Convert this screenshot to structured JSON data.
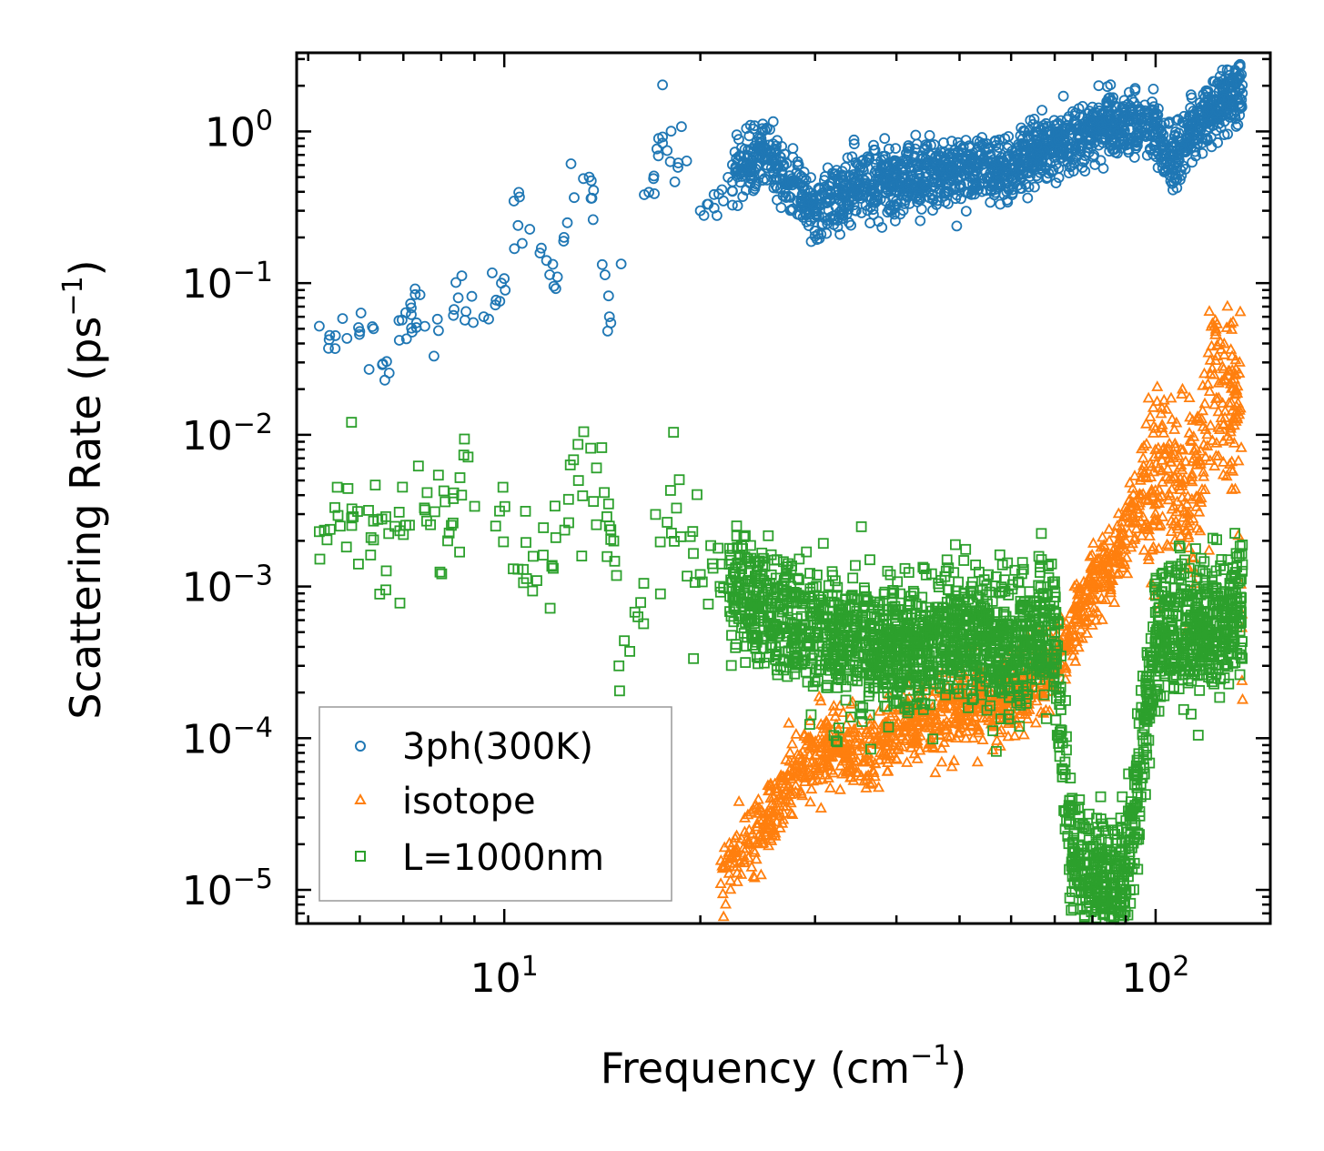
{
  "chart_data": {
    "type": "scatter",
    "xscale": "log",
    "yscale": "log",
    "xlim": [
      4.8,
      150
    ],
    "ylim": [
      6e-06,
      3.3
    ],
    "xlabel": "Frequency (cm",
    "xlabel_sup": "−1",
    "xlabel_end": ")",
    "ylabel": "Scattering Rate (ps",
    "ylabel_sup": "−1",
    "ylabel_end": ")",
    "x_ticks": [
      {
        "value": 10,
        "base": "10",
        "exp": "1"
      },
      {
        "value": 100,
        "base": "10",
        "exp": "2"
      }
    ],
    "y_ticks": [
      {
        "value": 1,
        "base": "10",
        "exp": "0"
      },
      {
        "value": 0.1,
        "base": "10",
        "exp": "−1"
      },
      {
        "value": 0.01,
        "base": "10",
        "exp": "−2"
      },
      {
        "value": 0.001,
        "base": "10",
        "exp": "−3"
      },
      {
        "value": 0.0001,
        "base": "10",
        "exp": "−4"
      },
      {
        "value": 1e-05,
        "base": "10",
        "exp": "−5"
      }
    ],
    "legend_position": "lower-left",
    "series": [
      {
        "name": "3ph(300K)",
        "marker": "circle",
        "color": "#1f77b4",
        "sample_points": [
          [
            5.2,
            0.052
          ],
          [
            5.5,
            0.037
          ],
          [
            6.0,
            0.048
          ],
          [
            6.2,
            0.027
          ],
          [
            6.3,
            0.05
          ],
          [
            6.5,
            0.029
          ],
          [
            6.9,
            0.042
          ],
          [
            7.2,
            0.062
          ],
          [
            7.3,
            0.084
          ],
          [
            7.8,
            0.033
          ],
          [
            8.5,
            0.08
          ],
          [
            8.7,
            0.057
          ],
          [
            9.3,
            0.06
          ],
          [
            9.9,
            0.1
          ],
          [
            10.5,
            0.24
          ],
          [
            11.4,
            0.17
          ],
          [
            12.0,
            0.092
          ],
          [
            12.5,
            0.25
          ],
          [
            13.5,
            0.5
          ],
          [
            14.5,
            0.06
          ],
          [
            17.5,
            0.92
          ],
          [
            18.5,
            0.62
          ],
          [
            20.0,
            0.3
          ],
          [
            25.0,
            0.8
          ],
          [
            30.0,
            0.3
          ],
          [
            35.0,
            0.45
          ],
          [
            40.0,
            0.5
          ],
          [
            50.0,
            0.55
          ],
          [
            60.0,
            0.6
          ],
          [
            70.0,
            0.8
          ],
          [
            80.0,
            1.0
          ],
          [
            90.0,
            1.2
          ],
          [
            100.0,
            1.1
          ],
          [
            105.0,
            0.6
          ],
          [
            120.0,
            1.3
          ],
          [
            135.0,
            1.9
          ]
        ]
      },
      {
        "name": "isotope",
        "marker": "triangle",
        "color": "#ff7f0e",
        "sample_points": [
          [
            21.5,
            1.1e-05
          ],
          [
            22.5,
            1.8e-05
          ],
          [
            25.0,
            2.5e-05
          ],
          [
            28.0,
            6e-05
          ],
          [
            32.0,
            9e-05
          ],
          [
            36.0,
            8e-05
          ],
          [
            42.0,
            0.00013
          ],
          [
            50.0,
            0.00015
          ],
          [
            60.0,
            0.00018
          ],
          [
            70.0,
            0.0003
          ],
          [
            80.0,
            0.001
          ],
          [
            90.0,
            0.002
          ],
          [
            95.0,
            0.004
          ],
          [
            105.0,
            0.007
          ],
          [
            112.0,
            0.003
          ],
          [
            125.0,
            0.022
          ],
          [
            135.0,
            0.015
          ],
          [
            136.0,
            0.00018
          ]
        ]
      },
      {
        "name": "L=1000nm",
        "marker": "square",
        "color": "#2ca02c",
        "sample_points": [
          [
            5.2,
            0.0023
          ],
          [
            5.6,
            0.0025
          ],
          [
            6.3,
            0.0027
          ],
          [
            7.0,
            0.0022
          ],
          [
            7.6,
            0.0027
          ],
          [
            8.6,
            0.004
          ],
          [
            9.7,
            0.0025
          ],
          [
            10.5,
            0.0013
          ],
          [
            12.0,
            0.0021
          ],
          [
            13.0,
            0.005
          ],
          [
            14.5,
            0.0025
          ],
          [
            15.0,
            0.0003
          ],
          [
            18.0,
            0.0043
          ],
          [
            20.0,
            0.0012
          ],
          [
            25.0,
            0.0008
          ],
          [
            30.0,
            0.0005
          ],
          [
            40.0,
            0.0004
          ],
          [
            50.0,
            0.0005
          ],
          [
            60.0,
            0.0004
          ],
          [
            70.0,
            0.0005
          ],
          [
            75.0,
            1.1e-05
          ],
          [
            90.0,
            1e-05
          ],
          [
            100.0,
            0.0005
          ],
          [
            120.0,
            0.0005
          ],
          [
            135.0,
            0.0008
          ]
        ]
      }
    ]
  }
}
